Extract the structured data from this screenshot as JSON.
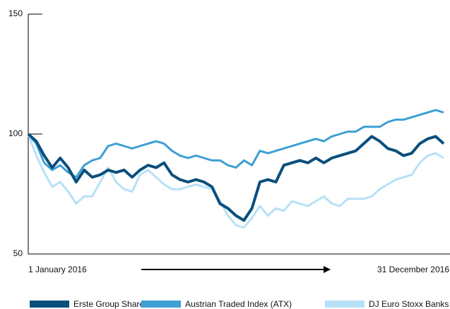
{
  "chart_data": {
    "type": "line",
    "start_label": "1 January 2016",
    "end_label": "31 December 2016",
    "ylim": [
      50,
      150
    ],
    "yticks": [
      50,
      100,
      150
    ],
    "series": [
      {
        "name": "Erste Group Share",
        "color": "#0b4f7c",
        "values": [
          100,
          97,
          91,
          86,
          90,
          86,
          80,
          85,
          82,
          83,
          85,
          84,
          85,
          82,
          85,
          87,
          86,
          88,
          83,
          81,
          80,
          81,
          80,
          78,
          71,
          69,
          66,
          64,
          69,
          80,
          81,
          80,
          87,
          88,
          89,
          88,
          90,
          88,
          90,
          91,
          92,
          93,
          96,
          99,
          97,
          94,
          93,
          91,
          92,
          96,
          98,
          99,
          96
        ]
      },
      {
        "name": "Austrian Traded Index (ATX)",
        "color": "#3d9fd3",
        "values": [
          100,
          96,
          88,
          85,
          87,
          84,
          82,
          87,
          89,
          90,
          95,
          96,
          95,
          94,
          95,
          96,
          97,
          96,
          93,
          91,
          90,
          91,
          90,
          89,
          89,
          87,
          86,
          89,
          87,
          93,
          92,
          93,
          94,
          95,
          96,
          97,
          98,
          97,
          99,
          100,
          101,
          101,
          103,
          103,
          103,
          105,
          106,
          106,
          107,
          108,
          109,
          110,
          109
        ]
      },
      {
        "name": "DJ Euro Stoxx Banks",
        "color": "#b7e1f7",
        "values": [
          100,
          91,
          84,
          78,
          80,
          76,
          71,
          74,
          74,
          80,
          86,
          80,
          77,
          76,
          83,
          85,
          82,
          79,
          77,
          77,
          78,
          79,
          78,
          77,
          72,
          66,
          62,
          61,
          65,
          70,
          66,
          69,
          68,
          72,
          71,
          70,
          72,
          74,
          71,
          70,
          73,
          73,
          73,
          74,
          77,
          79,
          81,
          82,
          83,
          88,
          91,
          92,
          90
        ]
      }
    ]
  }
}
